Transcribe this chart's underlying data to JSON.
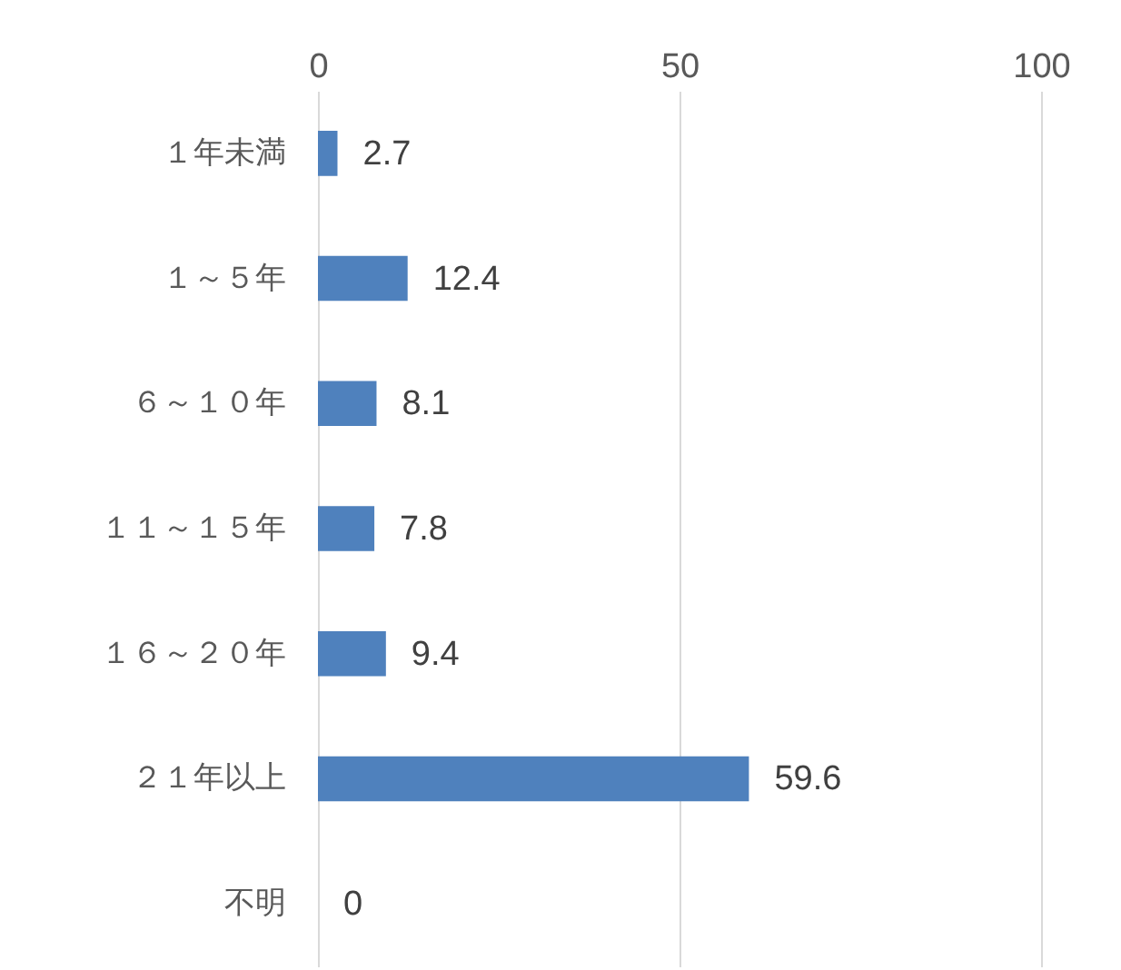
{
  "chart_data": {
    "type": "bar",
    "orientation": "horizontal",
    "categories": [
      "１年未満",
      "１～５年",
      "６～１０年",
      "１１～１５年",
      "１６～２０年",
      "２１年以上",
      "不明"
    ],
    "values": [
      2.7,
      12.4,
      8.1,
      7.8,
      9.4,
      59.6,
      0
    ],
    "color": "#4f81bd",
    "xlim": [
      0,
      100
    ],
    "xticks": [
      0,
      50,
      100
    ],
    "grid": "x",
    "data_labels": true
  }
}
